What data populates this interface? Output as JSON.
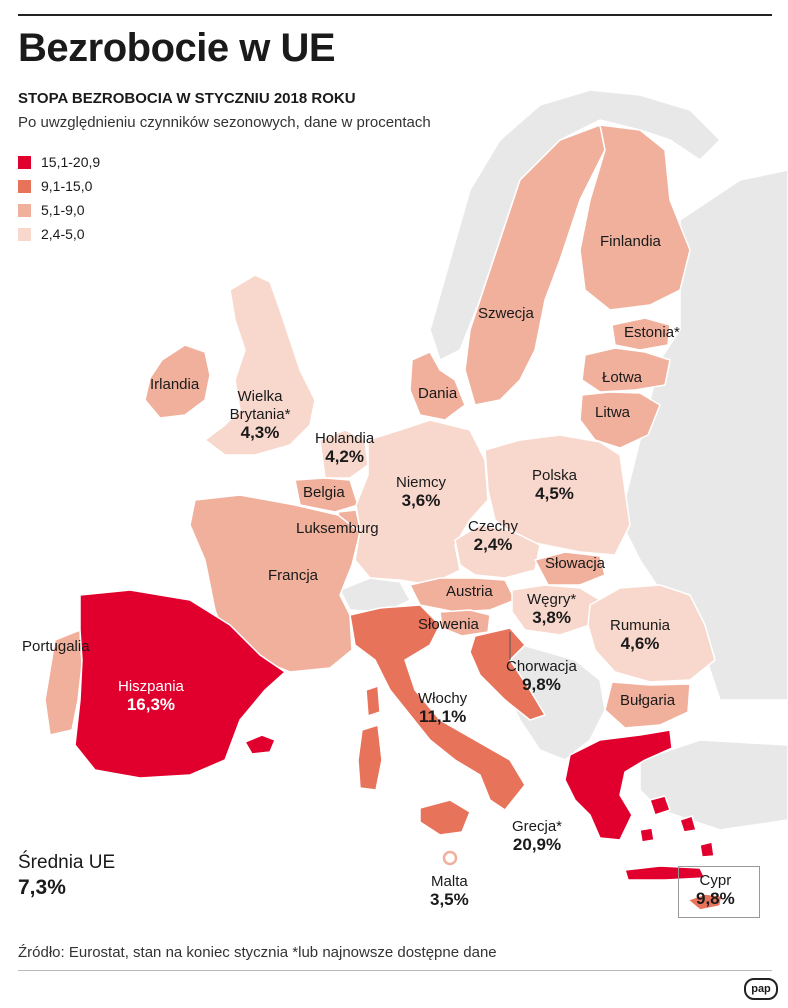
{
  "title": "Bezrobocie w UE",
  "subtitle": "STOPA BEZROBOCIA W STYCZNIU 2018 ROKU",
  "note": "Po uwzględnieniu czynników sezonowych, dane w procentach",
  "legend": [
    {
      "label": "15,1-20,9",
      "color": "#e1002d"
    },
    {
      "label": "9,1-15,0",
      "color": "#e8735b"
    },
    {
      "label": "5,1-9,0",
      "color": "#f0b09c"
    },
    {
      "label": "2,4-5,0",
      "color": "#f8d8cd"
    }
  ],
  "countries": {
    "irlandia": {
      "name": "Irlandia"
    },
    "wielka_brytania": {
      "name": "Wielka Brytania*",
      "value": "4,3%"
    },
    "holandia": {
      "name": "Holandia",
      "value": "4,2%"
    },
    "belgia": {
      "name": "Belgia"
    },
    "luksemburg": {
      "name": "Luksemburg"
    },
    "francja": {
      "name": "Francja"
    },
    "portugalia": {
      "name": "Portugalia"
    },
    "hiszpania": {
      "name": "Hiszpania",
      "value": "16,3%"
    },
    "niemcy": {
      "name": "Niemcy",
      "value": "3,6%"
    },
    "dania": {
      "name": "Dania"
    },
    "szwecja": {
      "name": "Szwecja"
    },
    "finlandia": {
      "name": "Finlandia"
    },
    "estonia": {
      "name": "Estonia*"
    },
    "lotwa": {
      "name": "Łotwa"
    },
    "litwa": {
      "name": "Litwa"
    },
    "polska": {
      "name": "Polska",
      "value": "4,5%"
    },
    "czechy": {
      "name": "Czechy",
      "value": "2,4%"
    },
    "slowacja": {
      "name": "Słowacja"
    },
    "austria": {
      "name": "Austria"
    },
    "wegry": {
      "name": "Węgry*",
      "value": "3,8%"
    },
    "slowenia": {
      "name": "Słowenia"
    },
    "chorwacja": {
      "name": "Chorwacja",
      "value": "9,8%"
    },
    "rumunia": {
      "name": "Rumunia",
      "value": "4,6%"
    },
    "bulgaria": {
      "name": "Bułgaria"
    },
    "wlochy": {
      "name": "Włochy",
      "value": "11,1%"
    },
    "grecja": {
      "name": "Grecja*",
      "value": "20,9%"
    },
    "malta": {
      "name": "Malta",
      "value": "3,5%"
    },
    "cypr": {
      "name": "Cypr",
      "value": "9,8%"
    }
  },
  "average": {
    "label": "Średnia UE",
    "value": "7,3%"
  },
  "source": "Źródło: Eurostat, stan na koniec stycznia *lub najnowsze dostępne dane",
  "logo": "pap",
  "colors": {
    "sea": "#ffffff",
    "nonEU": "#e8e8e8",
    "border": "#ffffff"
  }
}
